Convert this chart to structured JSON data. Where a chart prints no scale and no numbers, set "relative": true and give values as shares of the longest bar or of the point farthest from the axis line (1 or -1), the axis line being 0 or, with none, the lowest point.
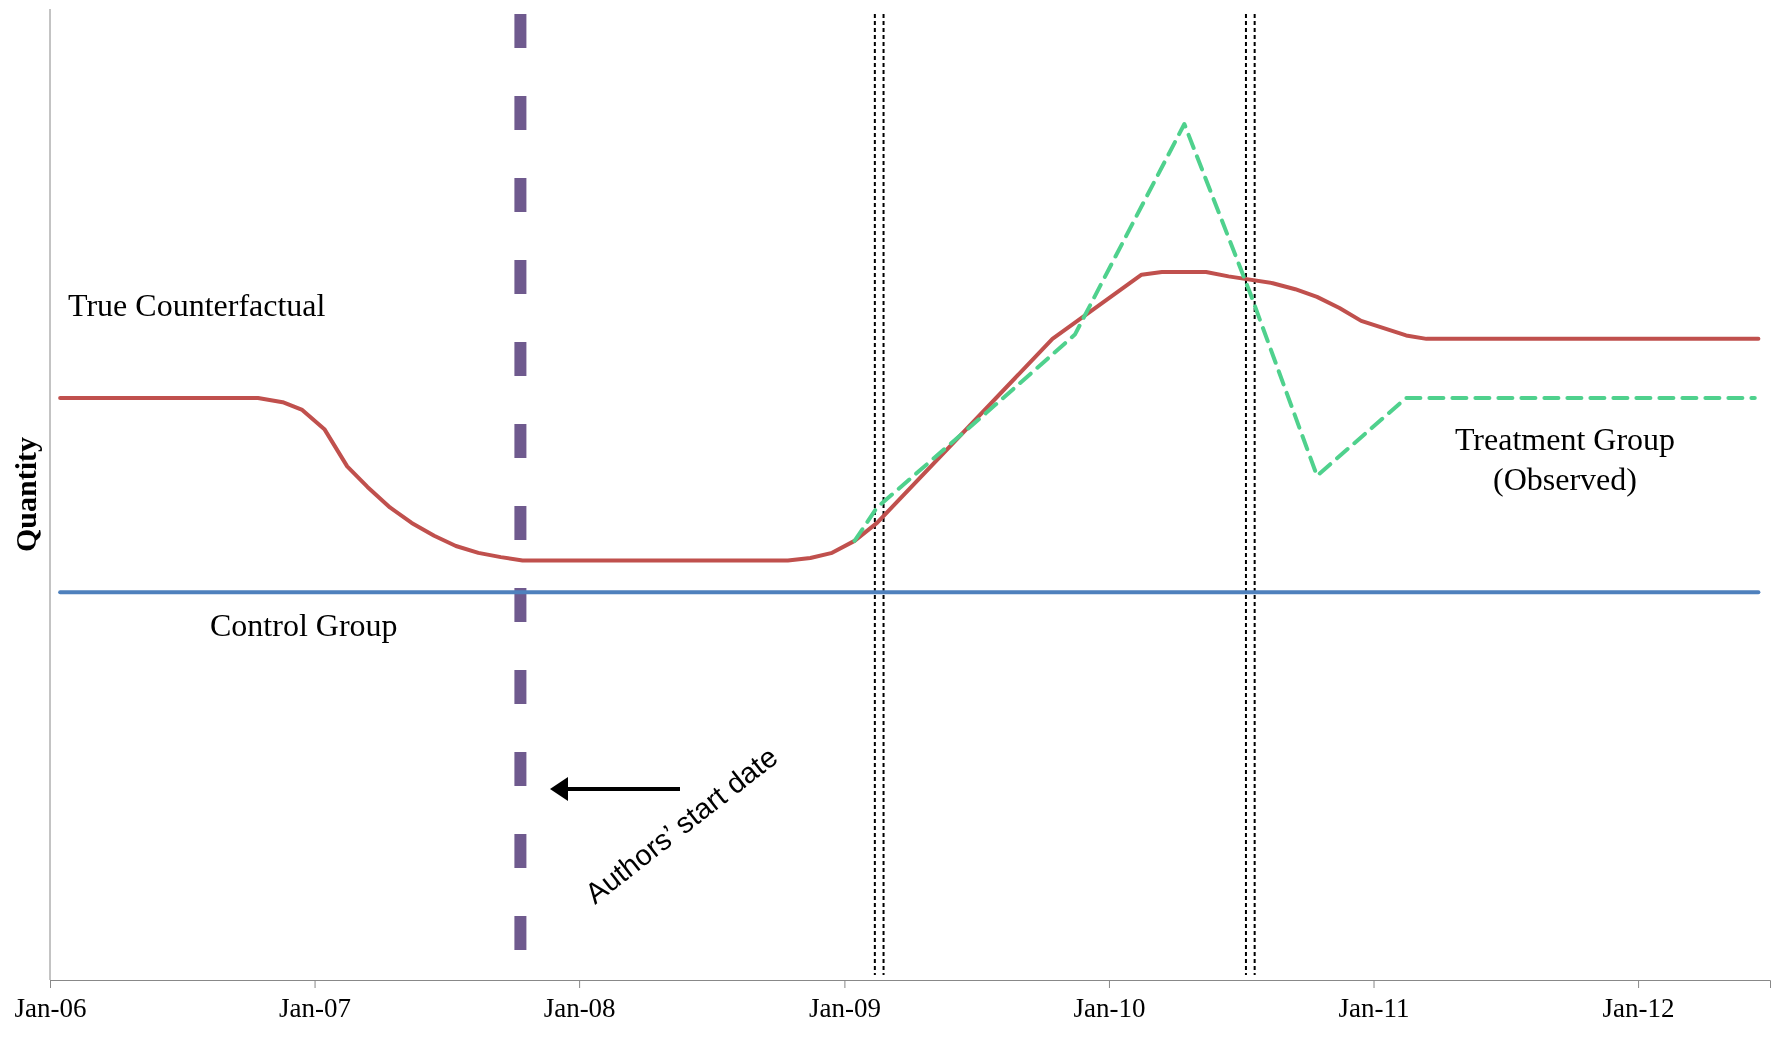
{
  "chart_data": {
    "type": "line",
    "relative": true,
    "ylabel": "Quantity",
    "xlim": [
      "2006-01",
      "2012-07"
    ],
    "xticks": [
      {
        "value": "2006-01",
        "label": "Jan-06"
      },
      {
        "value": "2007-01",
        "label": "Jan-07"
      },
      {
        "value": "2008-01",
        "label": "Jan-08"
      },
      {
        "value": "2009-01",
        "label": "Jan-09"
      },
      {
        "value": "2010-01",
        "label": "Jan-10"
      },
      {
        "value": "2011-01",
        "label": "Jan-11"
      },
      {
        "value": "2012-01",
        "label": "Jan-12"
      }
    ],
    "series": [
      {
        "name": "True Counterfactual",
        "color": "#c0504d",
        "line_style": "solid",
        "x": [
          "2006-01-15",
          "2006-10-15",
          "2006-11-18",
          "2006-12-15",
          "2007-01-15",
          "2007-02-15",
          "2007-03-15",
          "2007-04-15",
          "2007-05-15",
          "2007-06-15",
          "2007-07-15",
          "2007-08-15",
          "2007-09-15",
          "2007-10-15",
          "2008-10-15",
          "2008-11-15",
          "2008-12-15",
          "2009-01-15",
          "2009-02-15",
          "2009-10-15",
          "2010-02-15",
          "2010-03-15",
          "2010-05-15",
          "2010-06-15",
          "2010-08-15",
          "2010-09-15",
          "2010-10-15",
          "2010-11-15",
          "2010-12-15",
          "2011-02-15",
          "2011-03-15",
          "2012-06-15"
        ],
        "values": [
          0.68,
          0.68,
          0.675,
          0.666,
          0.643,
          0.6,
          0.576,
          0.552,
          0.534,
          0.519,
          0.507,
          0.499,
          0.494,
          0.49,
          0.49,
          0.493,
          0.499,
          0.513,
          0.534,
          0.749,
          0.824,
          0.827,
          0.827,
          0.822,
          0.814,
          0.807,
          0.798,
          0.785,
          0.77,
          0.753,
          0.749,
          0.749
        ]
      },
      {
        "name": "Control Group",
        "color": "#4f81bd",
        "line_style": "solid",
        "x": [
          "2006-01-15",
          "2012-06-15"
        ],
        "values": [
          0.453,
          0.453
        ]
      },
      {
        "name": "Treatment Group (Observed)",
        "color": "#4fd18d",
        "line_style": "dashed",
        "x": [
          "2009-01-15",
          "2009-02-15",
          "2009-07-15",
          "2009-11-15",
          "2010-04-15",
          "2010-07-15",
          "2010-10-15",
          "2011-02-15",
          "2012-06-10"
        ],
        "values": [
          0.513,
          0.552,
          0.662,
          0.754,
          1,
          0.802,
          0.589,
          0.68,
          0.68
        ]
      }
    ],
    "ref_lines": [
      {
        "axis": "x",
        "value": "2007-10-12",
        "color": "#6f5a8e",
        "line_style": "dashed"
      },
      {
        "axis": "x",
        "value": "2009-02-12",
        "color": "#000000",
        "line_style": "dotted"
      },
      {
        "axis": "x",
        "value": "2009-02-24",
        "color": "#000000",
        "line_style": "dotted"
      },
      {
        "axis": "x",
        "value": "2010-07-09",
        "color": "#000000",
        "line_style": "dotted"
      },
      {
        "axis": "x",
        "value": "2010-07-21",
        "color": "#000000",
        "line_style": "dotted"
      }
    ],
    "annotations": [
      "Authors’ start date"
    ]
  }
}
